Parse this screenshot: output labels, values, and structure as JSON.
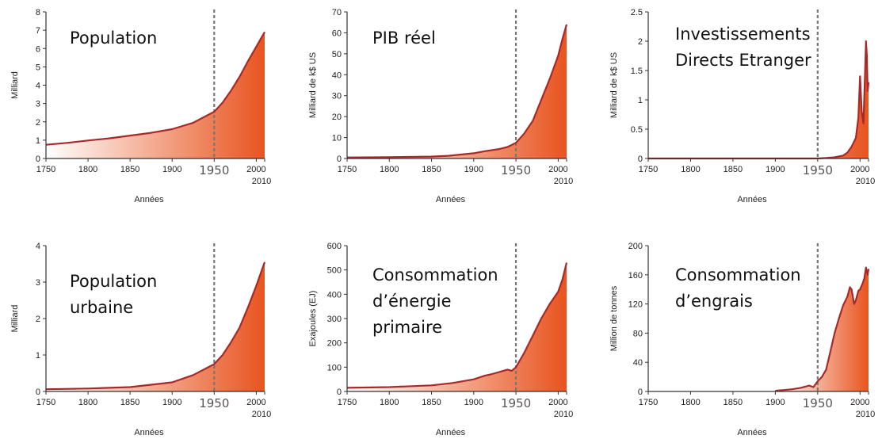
{
  "colors": {
    "line": "#a62a2a",
    "fill_dark": "#e8541f",
    "fill_light": "#ffffff",
    "marker": "#777777"
  },
  "chart_data": [
    {
      "type": "area",
      "title_lines": [
        "Population"
      ],
      "ylabel": "Milliard",
      "xlabel": "Années",
      "xlim": [
        1750,
        2010
      ],
      "ylim": [
        0,
        8
      ],
      "xticks": [
        1750,
        1800,
        1850,
        1900,
        1950,
        2000
      ],
      "yticks": [
        0,
        1,
        2,
        3,
        4,
        5,
        6,
        7,
        8
      ],
      "ytick_labels": [
        "0",
        "1",
        "2",
        "3",
        "4",
        "5",
        "6",
        "7",
        "8"
      ],
      "extra_xtick": 2010,
      "marker_year": 1950,
      "x": [
        1750,
        1775,
        1800,
        1825,
        1850,
        1875,
        1900,
        1925,
        1950,
        1960,
        1970,
        1980,
        1990,
        2000,
        2010
      ],
      "y": [
        0.75,
        0.85,
        0.98,
        1.1,
        1.25,
        1.4,
        1.6,
        1.95,
        2.55,
        3.05,
        3.7,
        4.45,
        5.3,
        6.1,
        6.9
      ]
    },
    {
      "type": "area",
      "title_lines": [
        "PIB réel"
      ],
      "ylabel": "Milliard de k$ US",
      "xlabel": "Années",
      "xlim": [
        1750,
        2010
      ],
      "ylim": [
        0,
        70
      ],
      "xticks": [
        1750,
        1800,
        1850,
        1900,
        1950,
        2000
      ],
      "yticks": [
        0,
        10,
        20,
        30,
        40,
        50,
        60,
        70
      ],
      "ytick_labels": [
        "0",
        "10",
        "20",
        "30",
        "40",
        "50",
        "60",
        "70"
      ],
      "extra_xtick": 2010,
      "marker_year": 1950,
      "x": [
        1750,
        1800,
        1850,
        1870,
        1900,
        1913,
        1930,
        1940,
        1950,
        1960,
        1970,
        1980,
        1990,
        2000,
        2005,
        2010
      ],
      "y": [
        0.5,
        0.6,
        0.9,
        1.3,
        2.5,
        3.5,
        4.5,
        5.5,
        7.5,
        12,
        18,
        28,
        38,
        49,
        57,
        64
      ]
    },
    {
      "type": "area",
      "title_lines": [
        "Investissements",
        "Directs Etranger"
      ],
      "ylabel": "Milliard de k$ US",
      "xlabel": "Années",
      "xlim": [
        1750,
        2010
      ],
      "ylim": [
        0,
        2.5
      ],
      "xticks": [
        1750,
        1800,
        1850,
        1900,
        1950,
        2000
      ],
      "yticks": [
        0,
        0.5,
        1,
        1.5,
        2,
        2.5
      ],
      "ytick_labels": [
        "0",
        "0.5",
        "1",
        "1.5",
        "2",
        "2.5"
      ],
      "extra_xtick": 2010,
      "marker_year": 1950,
      "x": [
        1750,
        1950,
        1960,
        1970,
        1980,
        1985,
        1990,
        1995,
        1998,
        2000,
        2002,
        2004,
        2006,
        2007,
        2008,
        2009,
        2010
      ],
      "y": [
        0,
        0,
        0.01,
        0.02,
        0.05,
        0.1,
        0.2,
        0.35,
        0.7,
        1.4,
        0.8,
        0.6,
        1.5,
        2.0,
        1.75,
        1.15,
        1.3
      ]
    },
    {
      "type": "area",
      "title_lines": [
        "Population",
        "urbaine"
      ],
      "ylabel": "Milliard",
      "xlabel": "Années",
      "xlim": [
        1750,
        2010
      ],
      "ylim": [
        0,
        4
      ],
      "xticks": [
        1750,
        1800,
        1850,
        1900,
        1950,
        2000
      ],
      "yticks": [
        0,
        1,
        2,
        3,
        4
      ],
      "ytick_labels": [
        "0",
        "1",
        "2",
        "3",
        "4"
      ],
      "extra_xtick": 2010,
      "marker_year": 1950,
      "x": [
        1750,
        1800,
        1850,
        1900,
        1925,
        1950,
        1960,
        1970,
        1980,
        1990,
        2000,
        2010
      ],
      "y": [
        0.06,
        0.08,
        0.12,
        0.25,
        0.45,
        0.75,
        1.0,
        1.35,
        1.75,
        2.3,
        2.9,
        3.55
      ]
    },
    {
      "type": "area",
      "title_lines": [
        "Consommation",
        "d’énergie",
        "primaire"
      ],
      "ylabel": "Exajoules (EJ)",
      "xlabel": "Années",
      "xlim": [
        1750,
        2010
      ],
      "ylim": [
        0,
        600
      ],
      "xticks": [
        1750,
        1800,
        1850,
        1900,
        1950,
        2000
      ],
      "yticks": [
        0,
        100,
        200,
        300,
        400,
        500,
        600
      ],
      "ytick_labels": [
        "0",
        "100",
        "200",
        "300",
        "400",
        "500",
        "600"
      ],
      "extra_xtick": 2010,
      "marker_year": 1950,
      "x": [
        1750,
        1800,
        1850,
        1875,
        1900,
        1913,
        1920,
        1930,
        1940,
        1945,
        1950,
        1960,
        1970,
        1980,
        1990,
        2000,
        2005,
        2010
      ],
      "y": [
        15,
        18,
        25,
        35,
        50,
        65,
        70,
        80,
        90,
        85,
        100,
        160,
        230,
        300,
        360,
        410,
        460,
        530
      ]
    },
    {
      "type": "area",
      "title_lines": [
        "Consommation",
        "d’engrais"
      ],
      "ylabel": "Million de tonnes",
      "xlabel": "Années",
      "xlim": [
        1750,
        2010
      ],
      "ylim": [
        0,
        200
      ],
      "xticks": [
        1750,
        1800,
        1850,
        1900,
        1950,
        2000
      ],
      "yticks": [
        0,
        40,
        80,
        120,
        160,
        200
      ],
      "ytick_labels": [
        "0",
        "40",
        "80",
        "120",
        "160",
        "200"
      ],
      "extra_xtick": 2010,
      "marker_year": 1950,
      "x": [
        1900,
        1910,
        1920,
        1930,
        1940,
        1945,
        1950,
        1955,
        1960,
        1965,
        1970,
        1975,
        1980,
        1985,
        1988,
        1990,
        1993,
        1995,
        1998,
        2000,
        2003,
        2005,
        2007,
        2009,
        2010
      ],
      "y": [
        1,
        2,
        3,
        5,
        8,
        6,
        14,
        20,
        30,
        55,
        80,
        100,
        118,
        130,
        143,
        140,
        120,
        125,
        138,
        140,
        148,
        155,
        170,
        160,
        168
      ]
    }
  ]
}
